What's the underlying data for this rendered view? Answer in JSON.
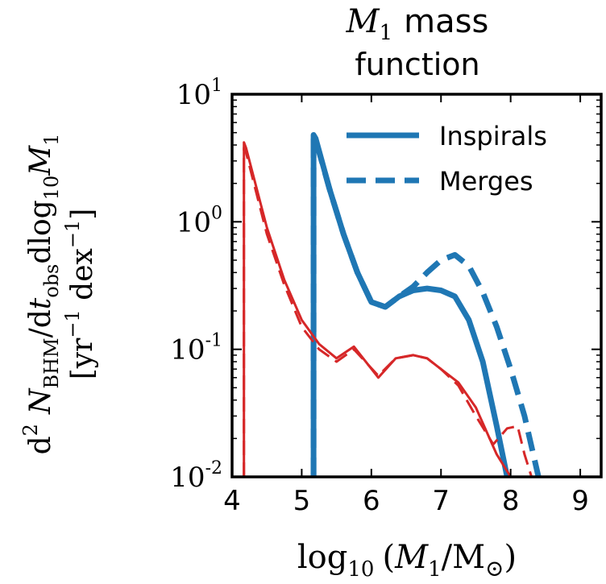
{
  "chart_data": {
    "type": "line",
    "title": {
      "line1_symbol": "M",
      "line1_sub": "1",
      "line1_rest": "mass",
      "line2": "function"
    },
    "xlabel": {
      "pre": "log",
      "pre_sub": "10",
      "open": "(",
      "sym": "M",
      "sym_sub": "1",
      "slash": "/M",
      "sun": "⊙",
      "close": ")"
    },
    "ylabel": {
      "line1": "d² N̄ / dt dlog M",
      "line1_parts": {
        "d2": "d",
        "sup2": "2",
        "N": "N",
        "N_sub": "BHM",
        "slash": "/d",
        "t": "t",
        "t_sub": "obs",
        "dlog": "dlog",
        "dlog_sub": "10",
        "M": "M",
        "M_sub": "1"
      },
      "line2_parts": {
        "open": "[yr",
        "yr_sup": "−1",
        "dex": " dex",
        "dex_sup": "−1",
        "close": "]"
      }
    },
    "xlim": [
      4,
      9.3
    ],
    "ylim": [
      0.01,
      10
    ],
    "yscale": "log",
    "xticks": [
      4,
      5,
      6,
      7,
      8,
      9
    ],
    "xtick_labels": [
      "4",
      "5",
      "6",
      "7",
      "8",
      "9"
    ],
    "yticks": [
      0.01,
      0.1,
      1,
      10
    ],
    "ytick_labels": [
      {
        "base": "10",
        "exp": "-2"
      },
      {
        "base": "10",
        "exp": "-1"
      },
      {
        "base": "10",
        "exp": "0"
      },
      {
        "base": "10",
        "exp": "1"
      }
    ],
    "grid": false,
    "legend_placement": "top-right",
    "legend": [
      {
        "label": "Inspirals",
        "style": "solid",
        "color": "#1f77b4"
      },
      {
        "label": "Merges",
        "style": "dashed",
        "color": "#1f77b4"
      }
    ],
    "series": [
      {
        "key": "blue_inspirals",
        "color": "#1f77b4",
        "style": "solid",
        "width": "thick",
        "x": [
          5.17,
          5.17,
          5.2,
          5.4,
          5.6,
          5.8,
          6.0,
          6.2,
          6.4,
          6.6,
          6.8,
          7.0,
          7.2,
          7.4,
          7.6,
          7.8,
          7.95
        ],
        "y": [
          0.01,
          4.8,
          4.5,
          1.8,
          0.8,
          0.4,
          0.235,
          0.215,
          0.26,
          0.29,
          0.3,
          0.29,
          0.26,
          0.17,
          0.08,
          0.025,
          0.01
        ]
      },
      {
        "key": "blue_merges",
        "color": "#1f77b4",
        "style": "dashed",
        "width": "thick",
        "x": [
          5.17,
          5.17,
          5.2,
          5.4,
          5.6,
          5.8,
          6.0,
          6.2,
          6.4,
          6.6,
          6.8,
          7.0,
          7.2,
          7.4,
          7.6,
          7.8,
          8.0,
          8.2,
          8.4
        ],
        "y": [
          0.01,
          4.6,
          4.4,
          1.8,
          0.8,
          0.4,
          0.235,
          0.215,
          0.26,
          0.31,
          0.4,
          0.5,
          0.55,
          0.45,
          0.28,
          0.15,
          0.07,
          0.03,
          0.01
        ]
      },
      {
        "key": "red_inspirals",
        "color": "#d62728",
        "style": "solid",
        "width": "thin",
        "x": [
          4.17,
          4.17,
          4.2,
          4.5,
          4.75,
          5.0,
          5.25,
          5.5,
          5.75,
          6.1,
          6.35,
          6.6,
          6.8,
          7.0,
          7.25,
          7.5,
          7.8,
          8.0
        ],
        "y": [
          0.01,
          4.2,
          3.8,
          0.9,
          0.35,
          0.17,
          0.11,
          0.085,
          0.105,
          0.06,
          0.085,
          0.09,
          0.085,
          0.07,
          0.055,
          0.035,
          0.015,
          0.01
        ]
      },
      {
        "key": "red_merges",
        "color": "#d62728",
        "style": "dashed",
        "width": "thin",
        "x": [
          4.17,
          4.17,
          4.2,
          4.5,
          4.75,
          5.0,
          5.25,
          5.5,
          5.75,
          6.1,
          6.35,
          6.6,
          6.8,
          7.0,
          7.25,
          7.5,
          7.75,
          7.95,
          8.1,
          8.2,
          8.3
        ],
        "y": [
          0.01,
          3.8,
          3.5,
          0.8,
          0.32,
          0.15,
          0.1,
          0.08,
          0.1,
          0.062,
          0.085,
          0.09,
          0.085,
          0.07,
          0.052,
          0.03,
          0.018,
          0.024,
          0.025,
          0.015,
          0.01
        ]
      }
    ]
  }
}
